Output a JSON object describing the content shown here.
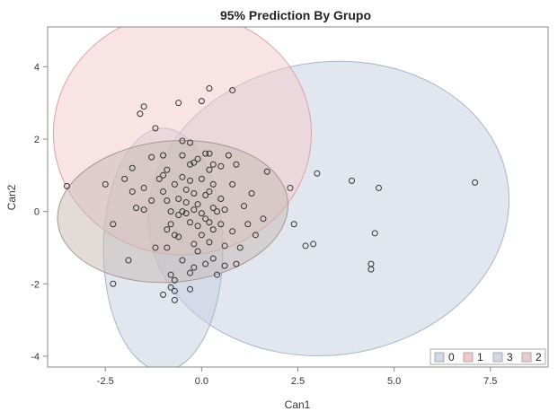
{
  "chart_data": {
    "type": "scatter",
    "title": "95% Prediction By Grupo",
    "xlabel": "Can1",
    "ylabel": "Can2",
    "xlim": [
      -4.0,
      9.0
    ],
    "ylim": [
      -4.3,
      5.1
    ],
    "x_ticks": [
      -2.5,
      0.0,
      2.5,
      5.0,
      7.5
    ],
    "y_ticks": [
      -4,
      -2,
      0,
      2,
      4
    ],
    "grid": false,
    "legend_position": "bottom-right",
    "legend": [
      {
        "label": "0",
        "color": "#bcc6dc"
      },
      {
        "label": "1",
        "color": "#e9b4b4"
      },
      {
        "label": "3",
        "color": "#c2c8d8"
      },
      {
        "label": "2",
        "color": "#dcb8bc"
      }
    ],
    "prediction_ellipses": [
      {
        "group": "3",
        "cx": 3.3,
        "cy": 0.08,
        "rx": 4.7,
        "ry": 4.05,
        "angle": 8,
        "fill": "#c5cde0",
        "stroke": "#a8b4cc"
      },
      {
        "group": "0",
        "cx": -1.0,
        "cy": -1.05,
        "rx": 1.55,
        "ry": 3.35,
        "angle": 0,
        "fill": "#c5cde0",
        "stroke": "#a8b4cc"
      },
      {
        "group": "1",
        "cx": -0.5,
        "cy": 2.15,
        "rx": 3.35,
        "ry": 3.35,
        "angle": 0,
        "fill": "#f2c9c9",
        "stroke": "#d9a3a3"
      },
      {
        "group": "2",
        "cx": -0.75,
        "cy": 0.0,
        "rx": 3.0,
        "ry": 1.95,
        "angle": 5,
        "fill": "#c5b7b2",
        "stroke": "#a89694"
      }
    ],
    "points": [
      [
        -3.5,
        0.7
      ],
      [
        -2.5,
        0.75
      ],
      [
        -2.3,
        -0.35
      ],
      [
        -2.3,
        -2.0
      ],
      [
        -2.0,
        0.9
      ],
      [
        -1.9,
        -1.35
      ],
      [
        -1.6,
        2.7
      ],
      [
        -1.5,
        2.9
      ],
      [
        -1.8,
        0.55
      ],
      [
        -1.7,
        0.1
      ],
      [
        -1.8,
        1.2
      ],
      [
        -1.5,
        0.65
      ],
      [
        -1.5,
        0.05
      ],
      [
        -1.3,
        1.5
      ],
      [
        -1.3,
        0.3
      ],
      [
        -1.2,
        -1.0
      ],
      [
        -1.1,
        0.9
      ],
      [
        -1.0,
        0.55
      ],
      [
        -1.0,
        1.0
      ],
      [
        -0.9,
        1.15
      ],
      [
        -0.9,
        0.3
      ],
      [
        -0.9,
        -0.5
      ],
      [
        -0.9,
        -1.0
      ],
      [
        -0.8,
        0.0
      ],
      [
        -0.8,
        -0.35
      ],
      [
        -0.8,
        -1.75
      ],
      [
        -0.8,
        -2.1
      ],
      [
        -0.7,
        0.75
      ],
      [
        -0.7,
        -0.65
      ],
      [
        -0.7,
        -1.9
      ],
      [
        -0.7,
        -2.2
      ],
      [
        -1.0,
        -2.3
      ],
      [
        -0.7,
        -2.45
      ],
      [
        -0.6,
        0.35
      ],
      [
        -0.6,
        -0.1
      ],
      [
        -0.6,
        -0.7
      ],
      [
        -0.5,
        1.95
      ],
      [
        -0.5,
        1.55
      ],
      [
        -0.5,
        0.95
      ],
      [
        -0.5,
        0.0
      ],
      [
        -0.5,
        -1.35
      ],
      [
        -0.4,
        0.6
      ],
      [
        -0.4,
        0.25
      ],
      [
        -0.4,
        -0.05
      ],
      [
        -0.3,
        1.9
      ],
      [
        -0.3,
        1.3
      ],
      [
        -0.3,
        0.85
      ],
      [
        -0.3,
        -0.3
      ],
      [
        -0.3,
        -1.7
      ],
      [
        -0.3,
        -2.15
      ],
      [
        -0.2,
        0.5
      ],
      [
        -0.2,
        0.05
      ],
      [
        -0.2,
        -0.9
      ],
      [
        -0.1,
        1.45
      ],
      [
        -0.1,
        0.2
      ],
      [
        -0.1,
        -0.4
      ],
      [
        -0.1,
        -1.1
      ],
      [
        0.0,
        3.05
      ],
      [
        0.0,
        0.9
      ],
      [
        0.0,
        -0.05
      ],
      [
        0.0,
        -0.65
      ],
      [
        0.1,
        1.6
      ],
      [
        0.1,
        0.45
      ],
      [
        0.1,
        -0.2
      ],
      [
        0.1,
        -1.45
      ],
      [
        0.2,
        3.4
      ],
      [
        0.2,
        1.6
      ],
      [
        0.2,
        1.15
      ],
      [
        0.2,
        0.55
      ],
      [
        0.2,
        -0.3
      ],
      [
        0.2,
        -0.85
      ],
      [
        0.3,
        1.3
      ],
      [
        0.3,
        0.75
      ],
      [
        0.3,
        0.1
      ],
      [
        0.3,
        -0.5
      ],
      [
        0.3,
        -1.3
      ],
      [
        0.4,
        0.0
      ],
      [
        0.4,
        -1.75
      ],
      [
        0.5,
        1.25
      ],
      [
        0.5,
        0.35
      ],
      [
        0.5,
        -0.35
      ],
      [
        0.6,
        0.05
      ],
      [
        0.6,
        -0.95
      ],
      [
        0.6,
        -1.5
      ],
      [
        0.8,
        3.35
      ],
      [
        0.8,
        0.75
      ],
      [
        0.8,
        -0.55
      ],
      [
        0.9,
        1.3
      ],
      [
        0.9,
        -1.45
      ],
      [
        1.0,
        -1.0
      ],
      [
        1.1,
        0.15
      ],
      [
        1.2,
        -0.35
      ],
      [
        1.3,
        0.5
      ],
      [
        1.4,
        -0.65
      ],
      [
        1.7,
        1.1
      ],
      [
        2.3,
        0.65
      ],
      [
        2.4,
        -0.35
      ],
      [
        2.7,
        -0.95
      ],
      [
        2.9,
        -0.9
      ],
      [
        3.0,
        1.05
      ],
      [
        3.9,
        0.85
      ],
      [
        4.4,
        -1.45
      ],
      [
        4.4,
        -1.6
      ],
      [
        4.5,
        -0.6
      ],
      [
        4.6,
        0.65
      ],
      [
        7.1,
        0.8
      ],
      [
        -1.2,
        2.3
      ],
      [
        -0.6,
        3.0
      ],
      [
        -0.2,
        -1.55
      ],
      [
        -1.0,
        1.55
      ],
      [
        0.7,
        1.55
      ],
      [
        1.6,
        -0.2
      ],
      [
        -0.2,
        1.35
      ]
    ]
  }
}
